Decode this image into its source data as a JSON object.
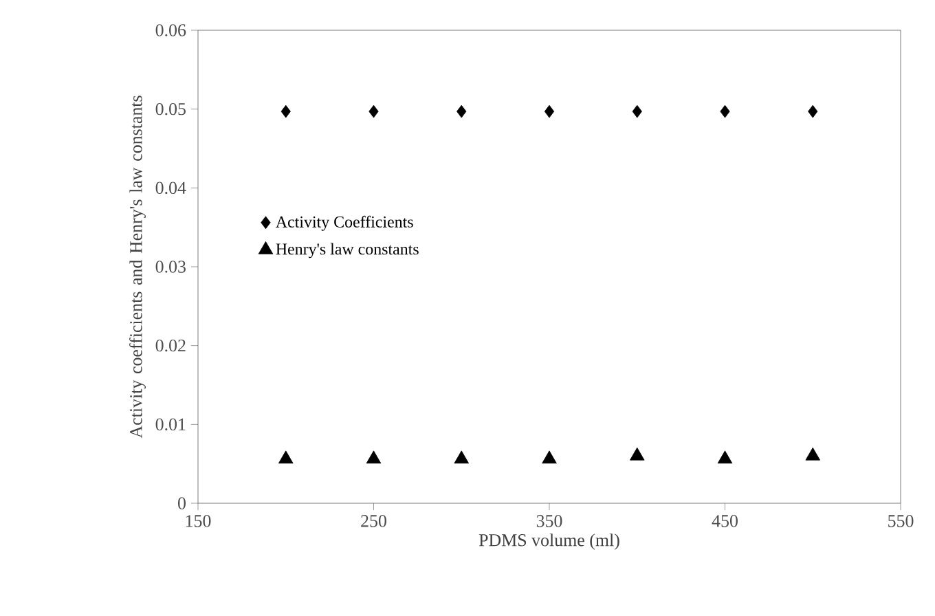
{
  "chart_data": {
    "type": "scatter",
    "xlabel": "PDMS volume (ml)",
    "ylabel": "Activity coefficients and Henry's law constants",
    "x": [
      200,
      250,
      300,
      350,
      400,
      450,
      500
    ],
    "series": [
      {
        "name": "Activity Coefficients",
        "color": "#000000",
        "marker": "diamond",
        "values": [
          0.0497,
          0.0497,
          0.0497,
          0.0497,
          0.0497,
          0.0497,
          0.0497
        ]
      },
      {
        "name": "Henry's law constants",
        "color": "#000000",
        "marker": "triangle",
        "values": [
          0.0056,
          0.0056,
          0.0056,
          0.0056,
          0.006,
          0.0056,
          0.006
        ]
      }
    ],
    "xlim": [
      150,
      550
    ],
    "xticks": [
      150,
      250,
      350,
      450,
      550
    ],
    "ylim": [
      0,
      0.06
    ],
    "yticks": [
      0,
      0.01,
      0.02,
      0.03,
      0.04,
      0.05,
      0.06
    ],
    "grid": false,
    "legend": "left"
  }
}
